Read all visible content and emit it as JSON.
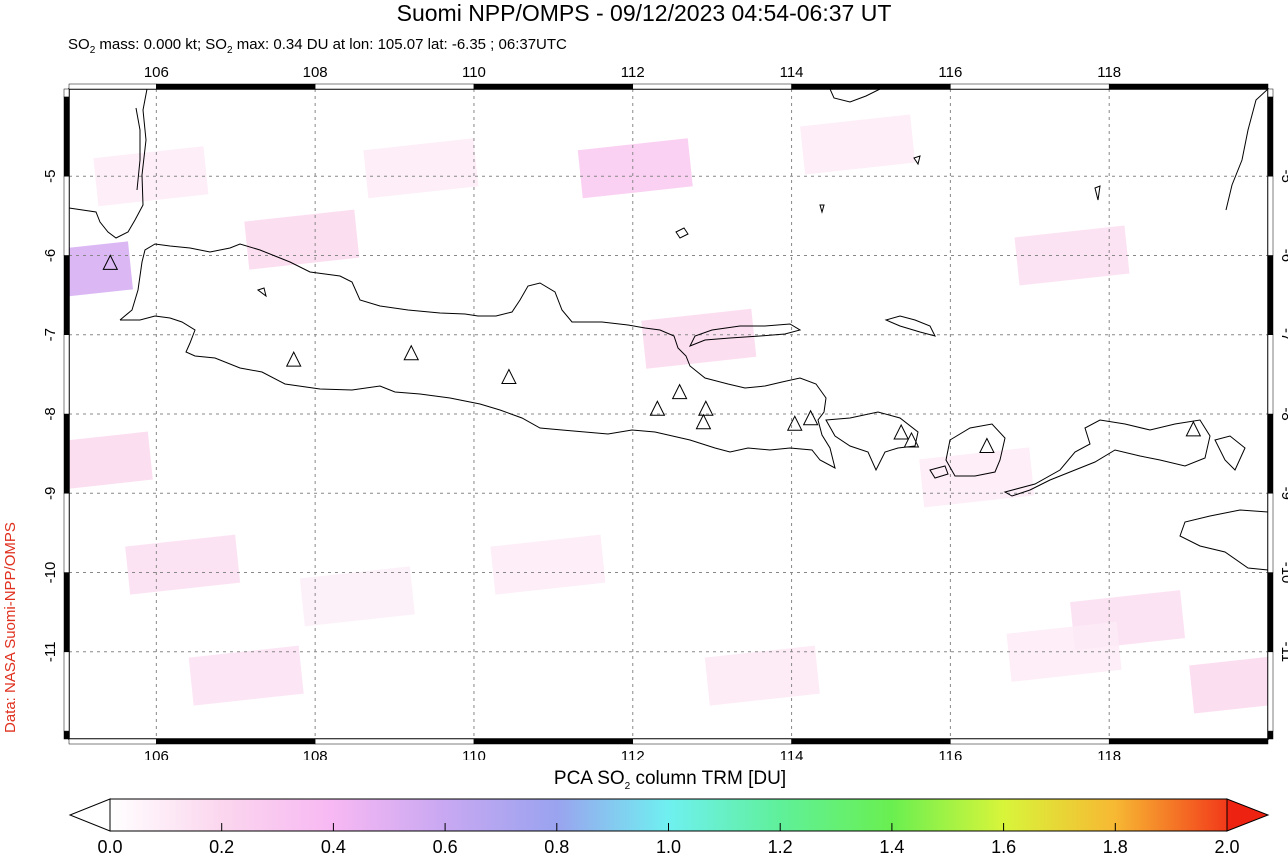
{
  "title": "Suomi NPP/OMPS - 09/12/2023 04:54-06:37 UT",
  "subtitle": {
    "prefix": "SO",
    "sub": "2",
    "mid": " mass: 0.000 kt; SO",
    "sub2": "2",
    "suffix": " max: 0.34 DU at lon: 105.07 lat: -6.35 ; 06:37UTC"
  },
  "credit": "Data: NASA Suomi-NPP/OMPS",
  "map": {
    "lon_range": [
      104.9,
      120.0
    ],
    "lat_range": [
      -12.1,
      -3.9
    ],
    "lon_ticks": [
      "106",
      "108",
      "110",
      "112",
      "114",
      "116",
      "118"
    ],
    "lon_tick_values": [
      106,
      108,
      110,
      112,
      114,
      116,
      118
    ],
    "lat_ticks": [
      "-5",
      "-6",
      "-7",
      "-8",
      "-9",
      "-10",
      "-11"
    ],
    "lat_tick_values": [
      -5,
      -6,
      -7,
      -8,
      -9,
      -10,
      -11
    ],
    "volcanoes": [
      [
        105.42,
        -6.1
      ],
      [
        107.73,
        -7.32
      ],
      [
        109.21,
        -7.24
      ],
      [
        110.44,
        -7.54
      ],
      [
        112.31,
        -7.94
      ],
      [
        112.59,
        -7.73
      ],
      [
        112.92,
        -7.94
      ],
      [
        112.89,
        -8.11
      ],
      [
        114.04,
        -8.13
      ],
      [
        114.24,
        -8.06
      ],
      [
        115.38,
        -8.24
      ],
      [
        115.51,
        -8.34
      ],
      [
        116.46,
        -8.41
      ],
      [
        119.06,
        -8.2
      ]
    ],
    "so2_pixels": [
      {
        "lon": 104.95,
        "lat": -6.2,
        "value": 0.34
      },
      {
        "lon": 112.0,
        "lat": -4.9,
        "value": 0.18
      },
      {
        "lon": 107.8,
        "lat": -5.8,
        "value": 0.12
      },
      {
        "lon": 117.5,
        "lat": -6.0,
        "value": 0.1
      },
      {
        "lon": 118.2,
        "lat": -10.6,
        "value": 0.1
      },
      {
        "lon": 106.3,
        "lat": -9.9,
        "value": 0.1
      },
      {
        "lon": 107.1,
        "lat": -11.3,
        "value": 0.09
      },
      {
        "lon": 112.8,
        "lat": -7.05,
        "value": 0.12
      },
      {
        "lon": 119.7,
        "lat": -11.4,
        "value": 0.12
      },
      {
        "lon": 105.2,
        "lat": -8.6,
        "value": 0.12
      },
      {
        "lon": 109.3,
        "lat": -4.9,
        "value": 0.06
      },
      {
        "lon": 114.8,
        "lat": -4.6,
        "value": 0.06
      },
      {
        "lon": 116.3,
        "lat": -8.8,
        "value": 0.06
      },
      {
        "lon": 110.9,
        "lat": -9.9,
        "value": 0.06
      },
      {
        "lon": 113.6,
        "lat": -11.3,
        "value": 0.07
      },
      {
        "lon": 108.5,
        "lat": -10.3,
        "value": 0.05
      },
      {
        "lon": 117.4,
        "lat": -11.0,
        "value": 0.06
      },
      {
        "lon": 105.9,
        "lat": -5.0,
        "value": 0.06
      }
    ]
  },
  "colorbar": {
    "label_prefix": "PCA SO",
    "label_sub": "2",
    "label_suffix": " column TRM [DU]",
    "ticks": [
      "0.0",
      "0.2",
      "0.4",
      "0.6",
      "0.8",
      "1.0",
      "1.2",
      "1.4",
      "1.6",
      "1.8",
      "2.0"
    ],
    "tick_values": [
      0.0,
      0.2,
      0.4,
      0.6,
      0.8,
      1.0,
      1.2,
      1.4,
      1.6,
      1.8,
      2.0
    ],
    "colors": [
      "#ffffff",
      "#fbd6ee",
      "#f7b8f3",
      "#c8a8f2",
      "#9aa3ef",
      "#6ff0f0",
      "#5ff09a",
      "#6aef50",
      "#d8f53a",
      "#f7b833",
      "#f23a1a"
    ],
    "under_color": "#ffffff",
    "over_color": "#ee2211"
  }
}
